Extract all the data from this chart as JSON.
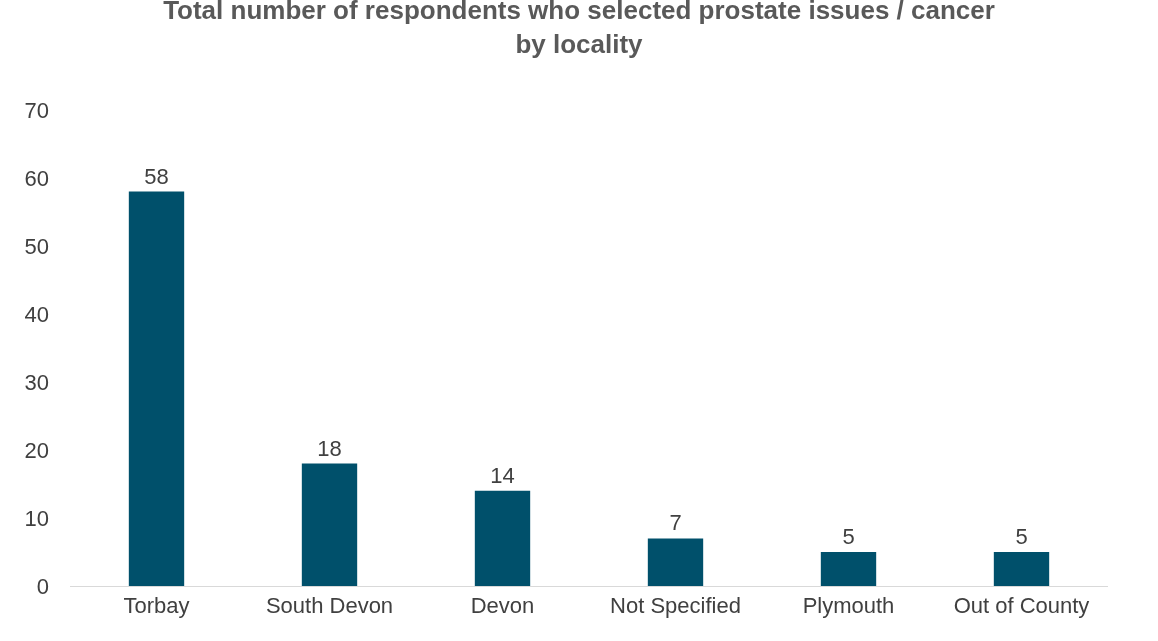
{
  "chart_data": {
    "type": "bar",
    "title": "Total number of respondents who selected prostate issues / cancer\nby locality",
    "categories": [
      "Torbay",
      "South Devon",
      "Devon",
      "Not Specified",
      "Plymouth",
      "Out of County"
    ],
    "values": [
      58,
      18,
      14,
      7,
      5,
      5
    ],
    "color": "#00506b",
    "ylim": [
      0,
      70
    ],
    "yticks": [
      0,
      10,
      20,
      30,
      40,
      50,
      60,
      70
    ],
    "grid": false,
    "data_labels": true
  }
}
